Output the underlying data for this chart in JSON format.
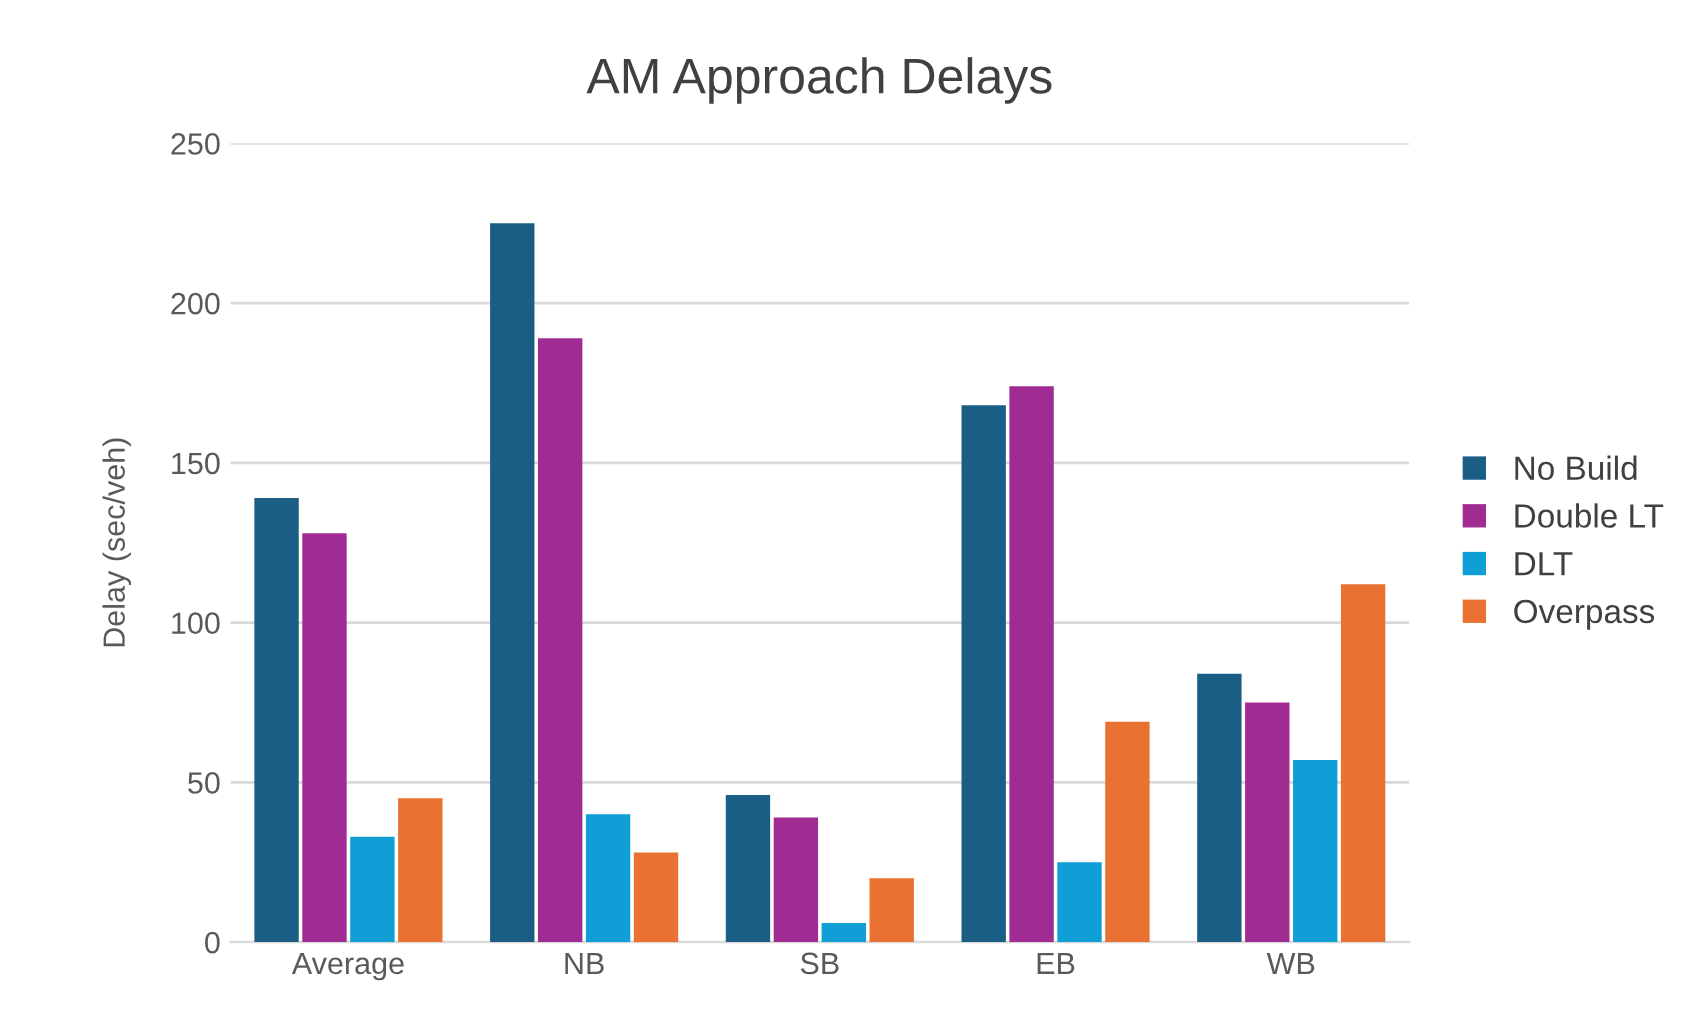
{
  "chart_data": {
    "type": "bar",
    "title": "AM Approach Delays",
    "ylabel": "Delay (sec/veh)",
    "categories": [
      "Average",
      "NB",
      "SB",
      "EB",
      "WB"
    ],
    "series": [
      {
        "name": "No Build",
        "color": "#1a5e85",
        "values": [
          139,
          225,
          46,
          168,
          84
        ]
      },
      {
        "name": "Double LT",
        "color": "#a02b93",
        "values": [
          128,
          189,
          39,
          174,
          75
        ]
      },
      {
        "name": "DLT",
        "color": "#0f9ed5",
        "values": [
          33,
          40,
          6,
          25,
          57
        ]
      },
      {
        "name": "Overpass",
        "color": "#e97132",
        "values": [
          45,
          28,
          20,
          69,
          112
        ]
      }
    ],
    "ylim": [
      0,
      250
    ],
    "yticks": [
      0,
      50,
      100,
      150,
      200,
      250
    ],
    "grid": "y",
    "legend": "right"
  }
}
